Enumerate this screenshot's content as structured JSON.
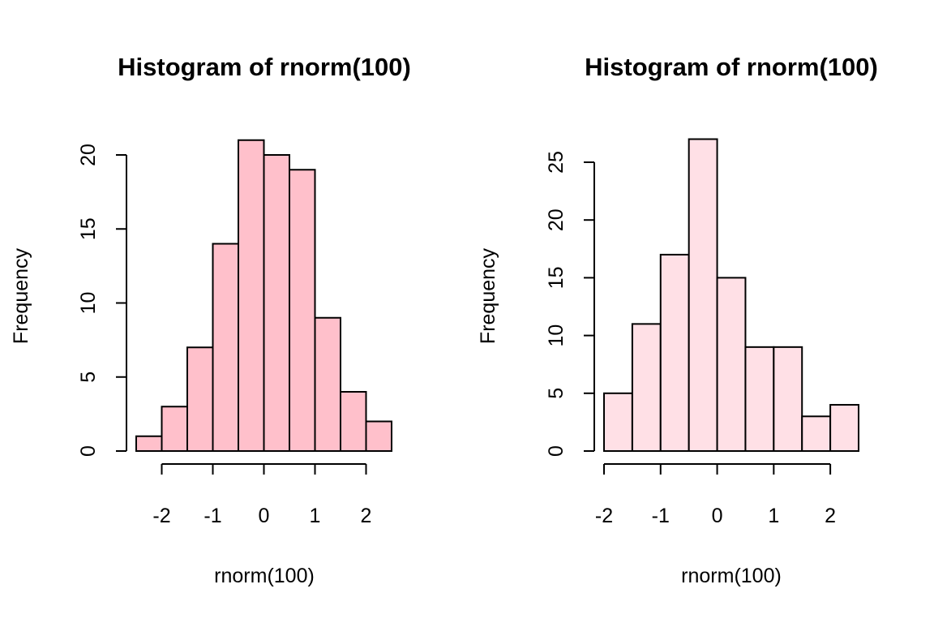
{
  "chart_data": [
    {
      "type": "bar",
      "title": "Histogram of rnorm(100)",
      "xlabel": "rnorm(100)",
      "ylabel": "Frequency",
      "bin_edges": [
        -2.5,
        -2,
        -1.5,
        -1,
        -0.5,
        0,
        0.5,
        1,
        1.5,
        2,
        2.5
      ],
      "values": [
        1,
        3,
        7,
        14,
        21,
        20,
        19,
        9,
        4,
        2
      ],
      "xticks": [
        -2,
        -1,
        0,
        1,
        2
      ],
      "xtick_labels": [
        "-2",
        "-1",
        "0",
        "1",
        "2"
      ],
      "yticks": [
        0,
        5,
        10,
        15,
        20
      ],
      "ytick_labels": [
        "0",
        "5",
        "10",
        "15",
        "20"
      ],
      "xlim": [
        -2.5,
        2.5
      ],
      "ylim": [
        0,
        20
      ],
      "bar_color": "#FFC0CB",
      "grid": false
    },
    {
      "type": "bar",
      "title": "Histogram of rnorm(100)",
      "xlabel": "rnorm(100)",
      "ylabel": "Frequency",
      "bin_edges": [
        -2,
        -1.5,
        -1,
        -0.5,
        0,
        0.5,
        1,
        1.5,
        2,
        2.5
      ],
      "values": [
        5,
        11,
        17,
        27,
        15,
        9,
        9,
        3,
        4
      ],
      "xticks": [
        -2,
        -1,
        0,
        1,
        2
      ],
      "xtick_labels": [
        "-2",
        "-1",
        "0",
        "1",
        "2"
      ],
      "yticks": [
        0,
        5,
        10,
        15,
        20,
        25
      ],
      "ytick_labels": [
        "0",
        "5",
        "10",
        "15",
        "20",
        "25"
      ],
      "xlim": [
        -2,
        2
      ],
      "ylim": [
        0,
        25
      ],
      "bar_color": "#FFE0E6",
      "grid": false
    }
  ]
}
